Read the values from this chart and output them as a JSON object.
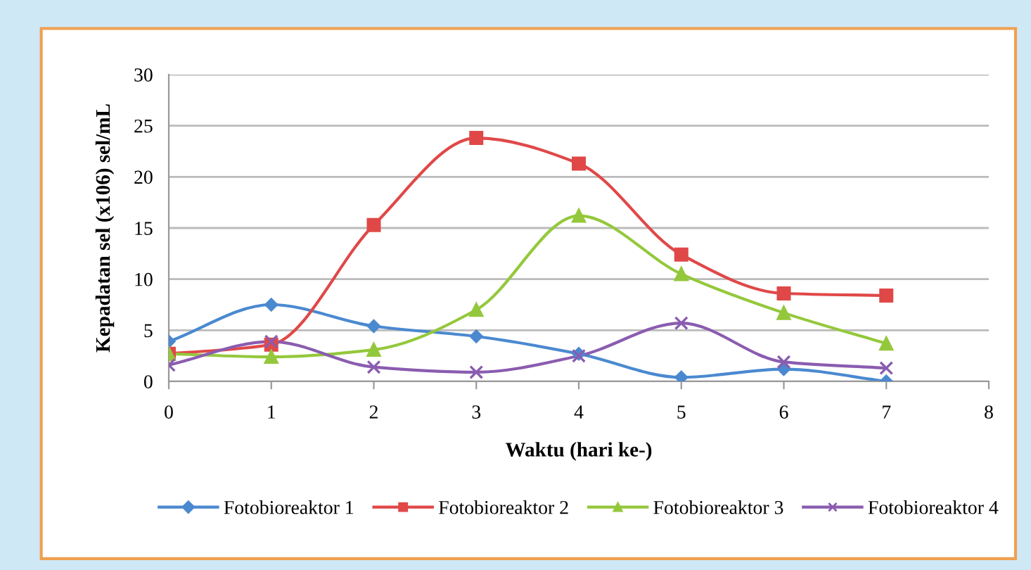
{
  "chart_data": {
    "type": "line",
    "xlabel": "Waktu (hari ke-)",
    "ylabel": "Kepadatan sel (x106) sel/mL",
    "x": [
      0,
      1,
      2,
      3,
      4,
      5,
      6,
      7
    ],
    "xlim": [
      0,
      8
    ],
    "xticks": [
      0,
      1,
      2,
      3,
      4,
      5,
      6,
      7,
      8
    ],
    "ylim": [
      0,
      30
    ],
    "yticks": [
      0,
      5,
      10,
      15,
      20,
      25,
      30
    ],
    "grid": "y",
    "legend": "bottom",
    "series": [
      {
        "name": "Fotobioreaktor 1",
        "color": "#4a89d0",
        "marker": "diamond",
        "values": [
          3.9,
          7.5,
          5.4,
          4.4,
          2.7,
          0.4,
          1.2,
          0.0
        ]
      },
      {
        "name": "Fotobioreaktor 2",
        "color": "#e04848",
        "marker": "square",
        "values": [
          2.7,
          3.6,
          15.3,
          23.8,
          21.3,
          12.4,
          8.6,
          8.4
        ]
      },
      {
        "name": "Fotobioreaktor 3",
        "color": "#94c83c",
        "marker": "triangle",
        "values": [
          2.7,
          2.4,
          3.1,
          7.0,
          16.2,
          10.5,
          6.7,
          3.7
        ]
      },
      {
        "name": "Fotobioreaktor 4",
        "color": "#8a5cb0",
        "marker": "cross",
        "values": [
          1.6,
          3.9,
          1.4,
          0.9,
          2.5,
          5.7,
          1.9,
          1.3
        ]
      }
    ]
  }
}
